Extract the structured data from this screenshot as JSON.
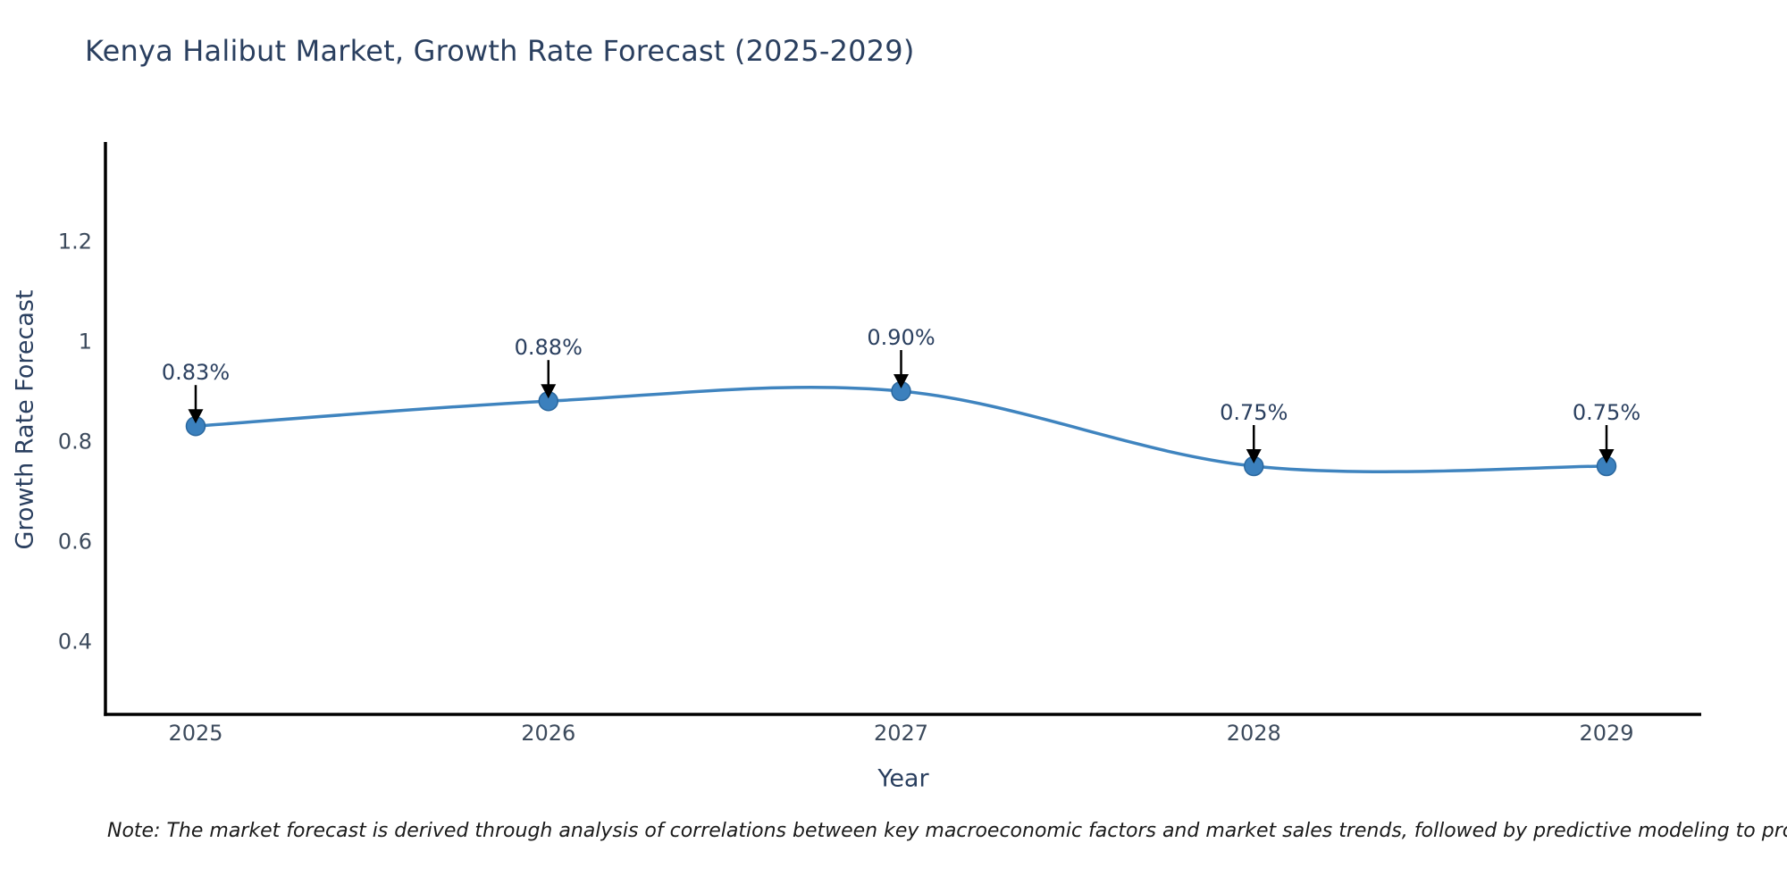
{
  "chart": {
    "title": "Kenya Halibut Market, Growth Rate Forecast (2025-2029)",
    "xlabel": "Year",
    "ylabel": "Growth Rate Forecast"
  },
  "chart_data": {
    "type": "line",
    "line_shape": "spline",
    "grid": false,
    "legend": "none",
    "x": [
      2025,
      2026,
      2027,
      2028,
      2029
    ],
    "y": [
      0.83,
      0.88,
      0.9,
      0.75,
      0.75
    ],
    "point_labels": [
      "0.83%",
      "0.88%",
      "0.90%",
      "0.75%",
      "0.75%"
    ],
    "x_tick_labels": [
      "2025",
      "2026",
      "2027",
      "2028",
      "2029"
    ],
    "y_ticks": [
      0.4,
      0.6,
      0.8,
      1,
      1.2
    ],
    "y_tick_labels": [
      "0.4",
      "0.6",
      "0.8",
      "1",
      "1.2"
    ],
    "xlim": [
      2024.74,
      2029.27
    ],
    "ylim": [
      0.254,
      1.405
    ],
    "title": "Kenya Halibut Market, Growth Rate Forecast (2025-2029)",
    "xlabel": "Year",
    "ylabel": "Growth Rate Forecast",
    "colors": {
      "line": "#3f84bf",
      "marker": "#3b80bd",
      "marker_edge": "#2a679e",
      "annotation_text": "#2a3f5f",
      "annotation_arrow": "#000000",
      "tick_text": "#3c4a5c",
      "title_text": "#2a3f5f",
      "axis_line": "#000000",
      "note_text": "#1a1a1a"
    }
  },
  "note": "Note: The market forecast is derived through analysis of correlations between key macroeconomic factors and market sales trends, followed by predictive modeling to project future sales"
}
